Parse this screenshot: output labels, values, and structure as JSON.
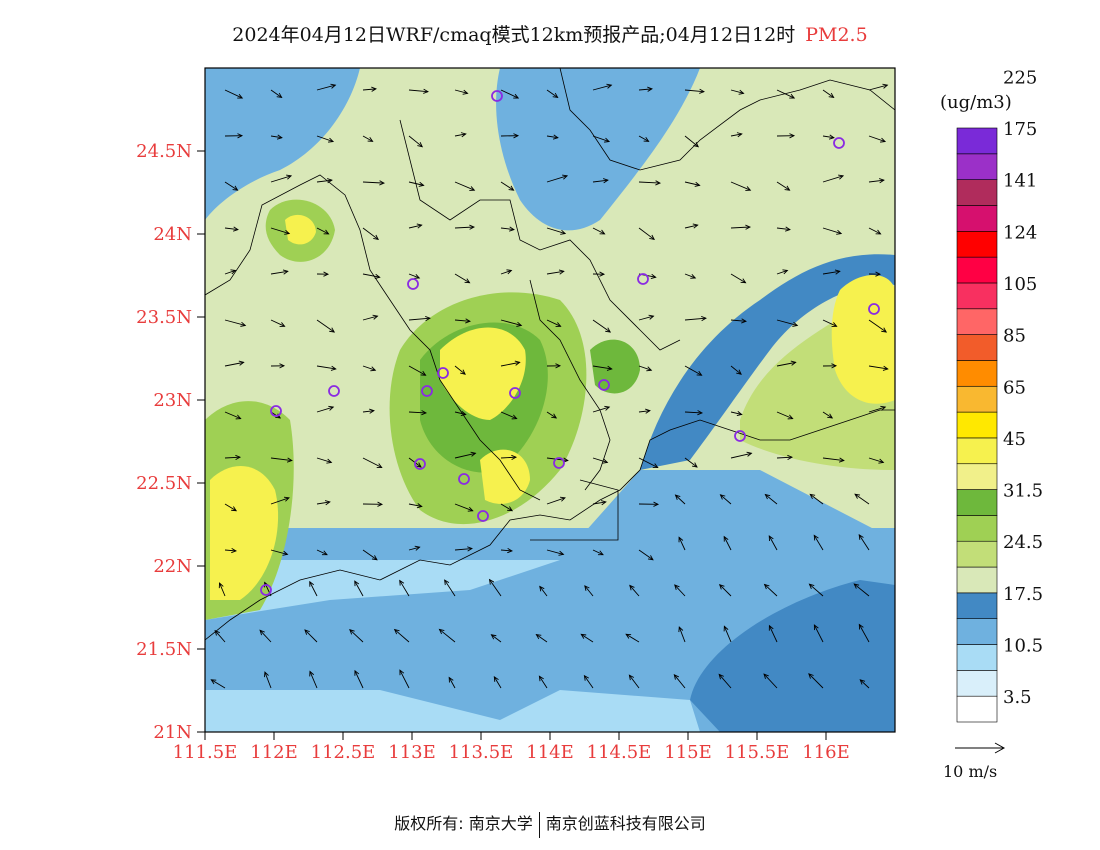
{
  "title": {
    "main": "2024年04月12日WRF/cmaq模式12km预报产品;04月12日12时",
    "product": "PM2.5"
  },
  "colorbar": {
    "unit": "(ug/m3)",
    "bins": [
      {
        "color": "#ffffff"
      },
      {
        "color": "#d9effa"
      },
      {
        "color": "#a9dcf5"
      },
      {
        "color": "#6fb1df"
      },
      {
        "color": "#4289c4"
      },
      {
        "color": "#d9e8b8"
      },
      {
        "color": "#c2de78"
      },
      {
        "color": "#9fd054"
      },
      {
        "color": "#6eb83c"
      },
      {
        "color": "#f1f08a"
      },
      {
        "color": "#f6f14e"
      },
      {
        "color": "#ffe800"
      },
      {
        "color": "#f9b830"
      },
      {
        "color": "#ff8c00"
      },
      {
        "color": "#f25c2a"
      },
      {
        "color": "#ff6666"
      },
      {
        "color": "#f83060"
      },
      {
        "color": "#ff0044"
      },
      {
        "color": "#ff0000"
      },
      {
        "color": "#d6106e"
      },
      {
        "color": "#b02c5c"
      },
      {
        "color": "#9b30c8"
      },
      {
        "color": "#7a2ad8"
      }
    ],
    "labels": [
      "3.5",
      "10.5",
      "17.5",
      "24.5",
      "31.5",
      "45",
      "65",
      "85",
      "105",
      "124",
      "141",
      "175",
      "225"
    ]
  },
  "axes": {
    "x_ticks": [
      "111.5E",
      "112E",
      "112.5E",
      "113E",
      "113.5E",
      "114E",
      "114.5E",
      "115E",
      "115.5E",
      "116E"
    ],
    "y_ticks": [
      "21N",
      "21.5N",
      "22N",
      "22.5N",
      "23N",
      "23.5N",
      "24N",
      "24.5N"
    ],
    "tick_color": "#e83c3c"
  },
  "wind": {
    "reference_label": "10  m/s"
  },
  "stations_color": "#8a2be2",
  "footer": {
    "left": "版权所有: 南京大学",
    "right": "南京创蓝科技有限公司"
  }
}
